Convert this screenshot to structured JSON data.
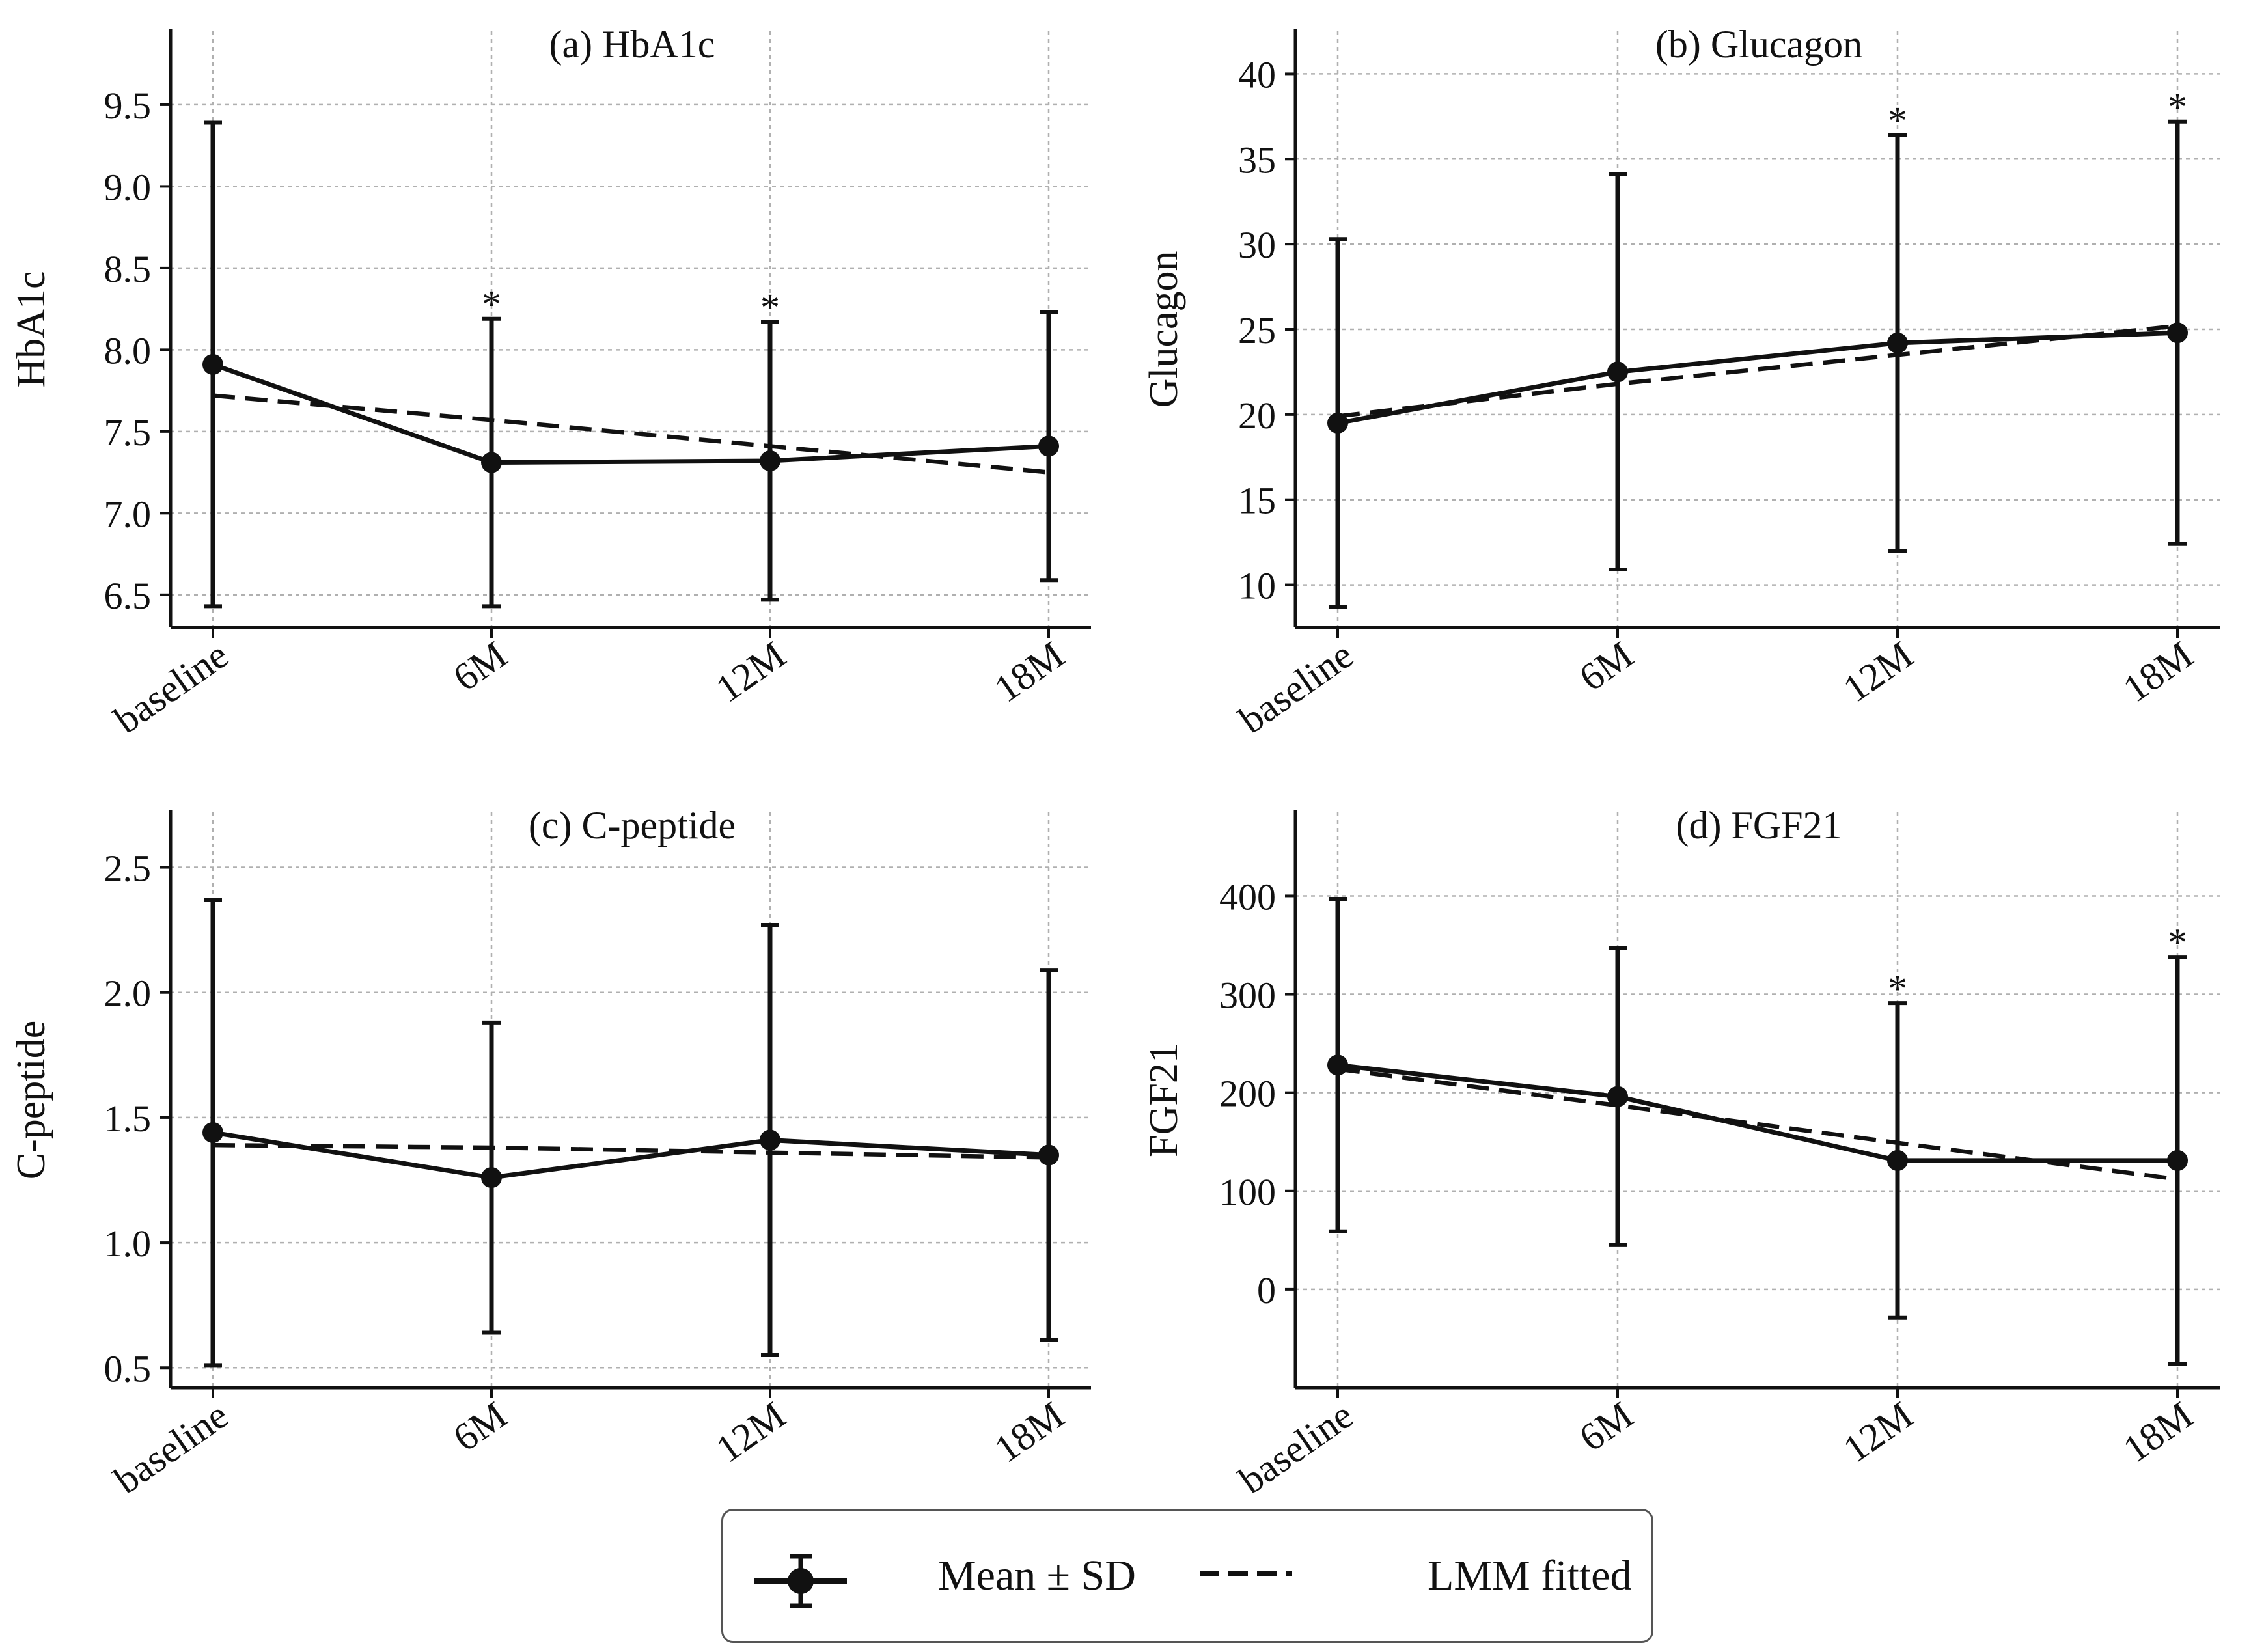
{
  "chart_data": [
    {
      "type": "line",
      "title": "(a) HbA1c",
      "ylabel": "HbA1c",
      "xlabel": "",
      "categories": [
        "baseline",
        "6M",
        "12M",
        "18M"
      ],
      "ylim": [
        6.3,
        9.95
      ],
      "yticks": [
        6.5,
        7.0,
        7.5,
        8.0,
        8.5,
        9.0,
        9.5
      ],
      "ytick_labels": [
        "6.5",
        "7.0",
        "7.5",
        "8.0",
        "8.5",
        "9.0",
        "9.5"
      ],
      "grid": true,
      "series": [
        {
          "name": "Mean ± SD",
          "values": [
            7.91,
            7.31,
            7.32,
            7.41
          ],
          "sd": [
            1.48,
            0.88,
            0.85,
            0.82
          ]
        },
        {
          "name": "LMM fitted",
          "values": [
            7.72,
            7.57,
            7.41,
            7.25
          ]
        }
      ],
      "significance": [
        false,
        true,
        true,
        false
      ],
      "significance_symbol": "*"
    },
    {
      "type": "line",
      "title": "(b) Glucagon",
      "ylabel": "Glucagon",
      "xlabel": "",
      "categories": [
        "baseline",
        "6M",
        "12M",
        "18M"
      ],
      "ylim": [
        7.5,
        42.5
      ],
      "yticks": [
        10,
        15,
        20,
        25,
        30,
        35,
        40
      ],
      "ytick_labels": [
        "10",
        "15",
        "20",
        "25",
        "30",
        "35",
        "40"
      ],
      "grid": true,
      "series": [
        {
          "name": "Mean ± SD",
          "values": [
            19.5,
            22.5,
            24.2,
            24.8
          ],
          "sd": [
            10.8,
            11.6,
            12.2,
            12.4
          ]
        },
        {
          "name": "LMM fitted",
          "values": [
            19.9,
            21.8,
            23.5,
            25.2
          ]
        }
      ],
      "significance": [
        false,
        false,
        true,
        true
      ],
      "significance_symbol": "*"
    },
    {
      "type": "line",
      "title": "(c) C-peptide",
      "ylabel": "C-peptide",
      "xlabel": "",
      "categories": [
        "baseline",
        "6M",
        "12M",
        "18M"
      ],
      "ylim": [
        0.42,
        2.72
      ],
      "yticks": [
        0.5,
        1.0,
        1.5,
        2.0,
        2.5
      ],
      "ytick_labels": [
        "0.5",
        "1.0",
        "1.5",
        "2.0",
        "2.5"
      ],
      "grid": true,
      "series": [
        {
          "name": "Mean ± SD",
          "values": [
            1.44,
            1.26,
            1.41,
            1.35
          ],
          "sd": [
            0.93,
            0.62,
            0.86,
            0.74
          ]
        },
        {
          "name": "LMM fitted",
          "values": [
            1.39,
            1.38,
            1.36,
            1.34
          ]
        }
      ],
      "significance": [
        false,
        false,
        false,
        false
      ],
      "significance_symbol": "*"
    },
    {
      "type": "line",
      "title": "(d) FGF21",
      "ylabel": "FGF21",
      "xlabel": "",
      "categories": [
        "baseline",
        "6M",
        "12M",
        "18M"
      ],
      "ylim": [
        -100,
        485
      ],
      "yticks": [
        0,
        100,
        200,
        300,
        400
      ],
      "ytick_labels": [
        "0",
        "100",
        "200",
        "300",
        "400"
      ],
      "grid": true,
      "series": [
        {
          "name": "Mean ± SD",
          "values": [
            228,
            196,
            131,
            131
          ],
          "sd": [
            169,
            151,
            160,
            207
          ]
        },
        {
          "name": "LMM fitted",
          "values": [
            224,
            187,
            149,
            112
          ]
        }
      ],
      "significance": [
        false,
        false,
        true,
        true
      ],
      "significance_symbol": "*"
    }
  ],
  "legend": {
    "position": "bottom-center",
    "entries": [
      {
        "label": "Mean ± SD",
        "style": "solid-errorbar"
      },
      {
        "label": "LMM fitted",
        "style": "dashed"
      }
    ]
  },
  "colors": {
    "line": "#111111",
    "grid": "#b0b0b0",
    "axis": "#111111"
  }
}
